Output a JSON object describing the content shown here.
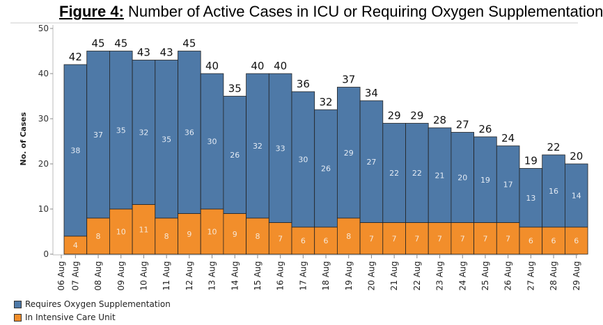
{
  "chart_data": {
    "type": "bar",
    "stacked": true,
    "title_prefix": "Figure 4:",
    "title": "Number of Active Cases in ICU or Requiring Oxygen Supplementation",
    "xlabel": "",
    "ylabel": "No. of Cases",
    "ylim": [
      0,
      50
    ],
    "yticks": [
      0,
      10,
      20,
      30,
      40,
      50
    ],
    "grid": false,
    "legend_placement": "bottom-left",
    "categories": [
      "06 Aug",
      "07 Aug",
      "08 Aug",
      "09 Aug",
      "10 Aug",
      "11 Aug",
      "12 Aug",
      "13 Aug",
      "14 Aug",
      "15 Aug",
      "16 Aug",
      "17 Aug",
      "18 Aug",
      "19 Aug",
      "20 Aug",
      "21 Aug",
      "22 Aug",
      "23 Aug",
      "24 Aug",
      "25 Aug",
      "26 Aug",
      "27 Aug",
      "28 Aug",
      "29 Aug"
    ],
    "series": [
      {
        "name": "In Intensive Care Unit",
        "color": "#f28e2b",
        "values": [
          null,
          4,
          8,
          10,
          11,
          8,
          9,
          10,
          9,
          8,
          7,
          6,
          6,
          8,
          7,
          7,
          7,
          7,
          7,
          7,
          7,
          6,
          6,
          6
        ]
      },
      {
        "name": "Requires Oxygen Supplementation",
        "color": "#4e79a7",
        "values": [
          null,
          38,
          37,
          35,
          32,
          35,
          36,
          30,
          26,
          32,
          33,
          30,
          26,
          29,
          27,
          22,
          22,
          21,
          20,
          19,
          17,
          13,
          16,
          14
        ]
      }
    ],
    "totals": [
      null,
      42,
      45,
      45,
      43,
      43,
      45,
      40,
      35,
      40,
      40,
      36,
      32,
      37,
      34,
      29,
      29,
      28,
      27,
      26,
      24,
      19,
      22,
      20
    ],
    "legend_order": [
      "Requires Oxygen Supplementation",
      "In Intensive Care Unit"
    ]
  }
}
